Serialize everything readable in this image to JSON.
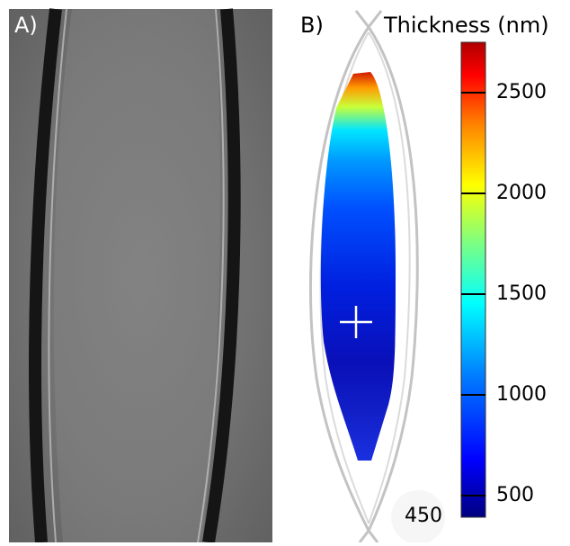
{
  "panel_a": {
    "label": "A)"
  },
  "panel_b": {
    "label": "B)",
    "colorbar": {
      "title": "Thickness (nm)",
      "ticks": [
        "2500",
        "2000",
        "1500",
        "1000",
        "500"
      ],
      "min_label": "450",
      "colormap": "jet",
      "colors": [
        "#00007f",
        "#0000ff",
        "#007fff",
        "#00ffff",
        "#7fff7f",
        "#ffff00",
        "#ff7f00",
        "#ff0000",
        "#7f0000"
      ]
    },
    "marker": "cross"
  }
}
